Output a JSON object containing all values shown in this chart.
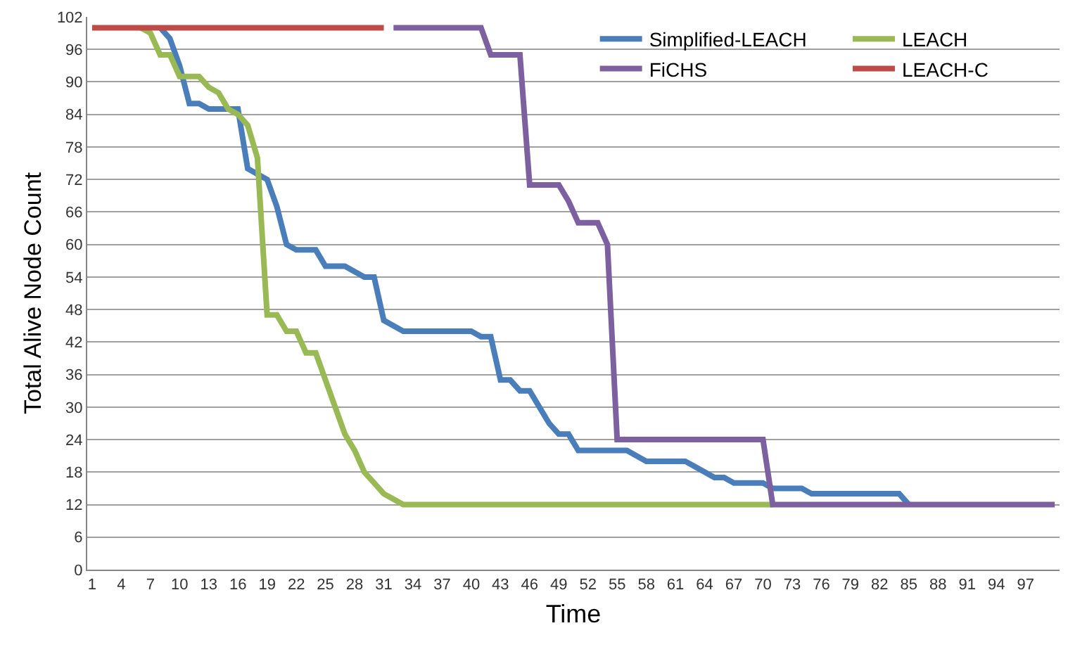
{
  "chart_data": {
    "type": "line",
    "xlabel": "Time",
    "ylabel": "Total Alive Node Count",
    "x": [
      1,
      2,
      3,
      4,
      5,
      6,
      7,
      8,
      9,
      10,
      11,
      12,
      13,
      14,
      15,
      16,
      17,
      18,
      19,
      20,
      21,
      22,
      23,
      24,
      25,
      26,
      27,
      28,
      29,
      30,
      31,
      32,
      33,
      34,
      35,
      36,
      37,
      38,
      39,
      40,
      41,
      42,
      43,
      44,
      45,
      46,
      47,
      48,
      49,
      50,
      51,
      52,
      53,
      54,
      55,
      56,
      57,
      58,
      59,
      60,
      61,
      62,
      63,
      64,
      65,
      66,
      67,
      68,
      69,
      70,
      71,
      72,
      73,
      74,
      75,
      76,
      77,
      78,
      79,
      80,
      81,
      82,
      83,
      84,
      85,
      86,
      87,
      88,
      89,
      90,
      91,
      92,
      93,
      94,
      95,
      96,
      97,
      98,
      99,
      100
    ],
    "series": [
      {
        "name": "Simplified-LEACH",
        "color": "#4a7ebb",
        "values": [
          null,
          null,
          null,
          null,
          null,
          null,
          null,
          100,
          98,
          93,
          86,
          86,
          85,
          85,
          85,
          85,
          74,
          73,
          72,
          67,
          60,
          59,
          59,
          59,
          56,
          56,
          56,
          55,
          54,
          54,
          46,
          45,
          44,
          44,
          44,
          44,
          44,
          44,
          44,
          44,
          43,
          43,
          35,
          35,
          33,
          33,
          30,
          27,
          25,
          25,
          22,
          22,
          22,
          22,
          22,
          22,
          21,
          20,
          20,
          20,
          20,
          20,
          19,
          18,
          17,
          17,
          16,
          16,
          16,
          16,
          15,
          15,
          15,
          15,
          14,
          14,
          14,
          14,
          14,
          14,
          14,
          14,
          14,
          14,
          12,
          null,
          null,
          null,
          null,
          null,
          null,
          null,
          null,
          null,
          null,
          null,
          null,
          null,
          null,
          null
        ]
      },
      {
        "name": "LEACH",
        "color": "#98b954",
        "values": [
          null,
          null,
          null,
          null,
          null,
          100,
          99,
          95,
          95,
          91,
          91,
          91,
          89,
          88,
          85,
          84,
          82,
          76,
          47,
          47,
          44,
          44,
          40,
          40,
          35,
          30,
          25,
          22,
          18,
          16,
          14,
          13,
          12,
          12,
          12,
          12,
          12,
          12,
          12,
          12,
          12,
          12,
          12,
          12,
          12,
          12,
          12,
          12,
          12,
          12,
          12,
          12,
          12,
          12,
          12,
          12,
          12,
          12,
          12,
          12,
          12,
          12,
          12,
          12,
          12,
          12,
          12,
          12,
          12,
          12,
          12,
          null,
          null,
          null,
          null,
          null,
          null,
          null,
          null,
          null,
          null,
          null,
          null,
          null,
          null,
          null,
          null,
          null,
          null,
          null,
          null,
          null,
          null,
          null,
          null,
          null,
          null,
          null,
          null,
          null
        ]
      },
      {
        "name": "FiCHS",
        "color": "#7d60a0",
        "values": [
          null,
          null,
          null,
          null,
          null,
          null,
          null,
          null,
          null,
          null,
          null,
          null,
          null,
          null,
          null,
          null,
          null,
          null,
          null,
          null,
          null,
          null,
          null,
          null,
          null,
          null,
          null,
          null,
          null,
          null,
          null,
          100,
          100,
          100,
          100,
          100,
          100,
          100,
          100,
          100,
          100,
          95,
          95,
          95,
          95,
          71,
          71,
          71,
          71,
          68,
          64,
          64,
          64,
          60,
          24,
          24,
          24,
          24,
          24,
          24,
          24,
          24,
          24,
          24,
          24,
          24,
          24,
          24,
          24,
          24,
          12,
          12,
          12,
          12,
          12,
          12,
          12,
          12,
          12,
          12,
          12,
          12,
          12,
          12,
          12,
          12,
          12,
          12,
          12,
          12,
          12,
          12,
          12,
          12,
          12,
          12,
          12,
          12,
          12,
          12
        ]
      },
      {
        "name": "LEACH-C",
        "color": "#be4b48",
        "values": [
          100,
          100,
          100,
          100,
          100,
          100,
          100,
          100,
          100,
          100,
          100,
          100,
          100,
          100,
          100,
          100,
          100,
          100,
          100,
          100,
          100,
          100,
          100,
          100,
          100,
          100,
          100,
          100,
          100,
          100,
          100,
          null,
          null,
          null,
          null,
          null,
          null,
          null,
          null,
          null,
          null,
          null,
          null,
          null,
          null,
          null,
          null,
          null,
          null,
          null,
          null,
          null,
          null,
          null,
          null,
          null,
          null,
          null,
          null,
          null,
          null,
          null,
          null,
          null,
          null,
          null,
          null,
          null,
          null,
          null,
          null,
          null,
          null,
          null,
          null,
          null,
          null,
          null,
          null,
          null,
          null,
          null,
          null,
          null,
          null,
          null,
          null,
          null,
          null,
          null,
          null,
          null,
          null,
          null,
          null,
          null,
          null,
          null,
          null,
          null
        ]
      }
    ],
    "xlim": [
      0.5,
      100.5
    ],
    "xticks": [
      1,
      4,
      7,
      10,
      13,
      16,
      19,
      22,
      25,
      28,
      31,
      34,
      37,
      40,
      43,
      46,
      49,
      52,
      55,
      58,
      61,
      64,
      67,
      70,
      73,
      76,
      79,
      82,
      85,
      88,
      91,
      94,
      97
    ],
    "ylim": [
      0,
      102
    ],
    "yticks": [
      0,
      6,
      12,
      18,
      24,
      30,
      36,
      42,
      48,
      54,
      60,
      66,
      72,
      78,
      84,
      90,
      96,
      102
    ],
    "grid": "y",
    "legend": "top right",
    "marker": "none",
    "line_style": "solid"
  }
}
